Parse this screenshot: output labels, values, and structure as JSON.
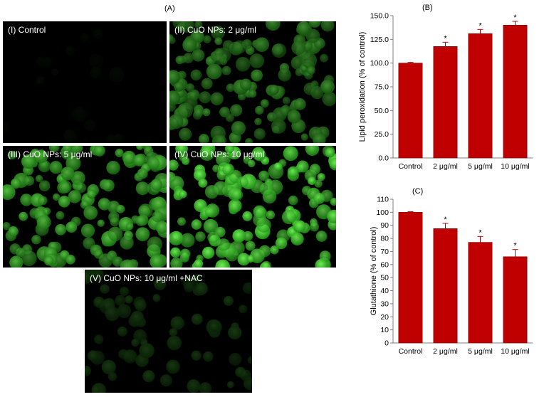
{
  "figure": {
    "label_a": "(A)",
    "label_b": "(B)",
    "label_c": "(C)"
  },
  "micrographs": [
    {
      "label": "(I) Control",
      "brightness": 0.04
    },
    {
      "label": "(II) CuO NPs: 2 μg/ml",
      "brightness": 0.55
    },
    {
      "label": "(III) CuO NPs: 5 μg/ml",
      "brightness": 0.75
    },
    {
      "label": "(IV) CuO NPs: 10 μg/ml",
      "brightness": 0.95
    },
    {
      "label": "(V) CuO NPs: 10 μg/ml +NAC",
      "brightness": 0.22
    }
  ],
  "colors": {
    "bar_fill": "#c00000",
    "bar_edge": "#7f0000",
    "cell_green": "#3fbf2a"
  },
  "chart_data": [
    {
      "type": "bar",
      "title": "(B)",
      "categories": [
        "Control",
        "2 μg/ml",
        "5 μg/ml",
        "10 μg/ml"
      ],
      "values": [
        100,
        117.5,
        131,
        140
      ],
      "errors": [
        0.8,
        4.5,
        4.5,
        4.0
      ],
      "significance": [
        "",
        "*",
        "*",
        "*"
      ],
      "xlabel": "",
      "ylabel": "Lipid peroxidation (% of control)",
      "ylim": [
        0,
        150
      ],
      "yticks": [
        "0.0",
        "25.0",
        "50.0",
        "75.0",
        "100.0",
        "125.0",
        "150.0"
      ],
      "grid": false
    },
    {
      "type": "bar",
      "title": "(C)",
      "categories": [
        "Control",
        "2 μg/ml",
        "5 μg/ml",
        "10 μg/ml"
      ],
      "values": [
        100,
        87.5,
        77,
        66
      ],
      "errors": [
        0.5,
        4.0,
        4.5,
        5.5
      ],
      "significance": [
        "",
        "*",
        "*",
        "*"
      ],
      "xlabel": "",
      "ylabel": "Glutathione (% of control)",
      "ylim": [
        0,
        110
      ],
      "yticks": [
        "0",
        "10",
        "20",
        "30",
        "40",
        "50",
        "60",
        "70",
        "80",
        "90",
        "100",
        "110"
      ],
      "grid": false
    }
  ]
}
